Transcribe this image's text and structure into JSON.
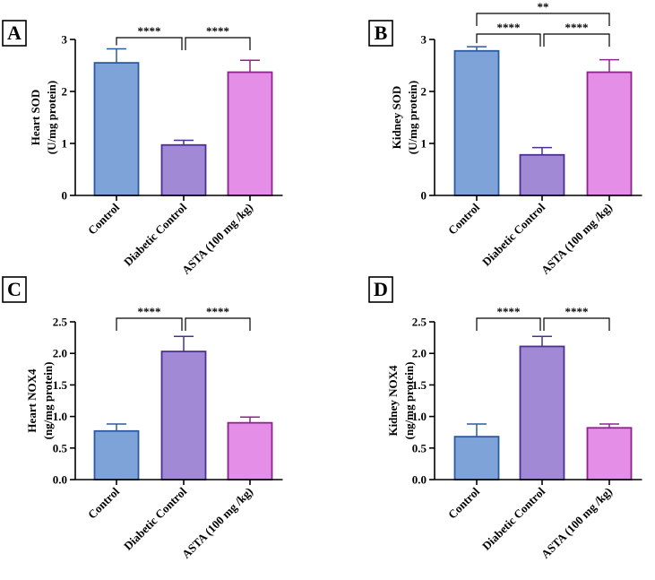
{
  "chart_data": [
    {
      "panel": "A",
      "type": "bar",
      "ylabel_lines": [
        "Heart SOD",
        "(U/mg protein)"
      ],
      "categories": [
        "Control",
        "Diabetic Control",
        "ASTA (100 mg /kg)"
      ],
      "values": [
        2.55,
        0.97,
        2.37
      ],
      "errors": [
        0.27,
        0.09,
        0.23
      ],
      "ylim": [
        0,
        3
      ],
      "yticks": [
        "0",
        "1",
        "2",
        "3"
      ],
      "significance": [
        {
          "from": 0,
          "to": 1,
          "label": "****"
        },
        {
          "from": 1,
          "to": 2,
          "label": "****"
        }
      ]
    },
    {
      "panel": "B",
      "type": "bar",
      "ylabel_lines": [
        "Kidney SOD",
        "(U/mg protein)"
      ],
      "categories": [
        "Control",
        "Diabetic Control",
        "ASTA (100 mg /kg)"
      ],
      "values": [
        2.78,
        0.78,
        2.37
      ],
      "errors": [
        0.08,
        0.14,
        0.24
      ],
      "ylim": [
        0,
        3
      ],
      "yticks": [
        "0",
        "1",
        "2",
        "3"
      ],
      "significance": [
        {
          "from": 0,
          "to": 1,
          "label": "****"
        },
        {
          "from": 1,
          "to": 2,
          "label": "****"
        },
        {
          "from": 0,
          "to": 2,
          "label": "**"
        }
      ]
    },
    {
      "panel": "C",
      "type": "bar",
      "ylabel_lines": [
        "Heart NOX4",
        "(ng/mg protein)"
      ],
      "categories": [
        "Control",
        "Diabetic Control",
        "ASTA (100 mg /kg)"
      ],
      "values": [
        0.77,
        2.03,
        0.9
      ],
      "errors": [
        0.11,
        0.24,
        0.09
      ],
      "ylim": [
        0,
        2.5
      ],
      "yticks": [
        "0.0",
        "0.5",
        "1.0",
        "1.5",
        "2.0",
        "2.5"
      ],
      "significance": [
        {
          "from": 0,
          "to": 1,
          "label": "****"
        },
        {
          "from": 1,
          "to": 2,
          "label": "****"
        }
      ]
    },
    {
      "panel": "D",
      "type": "bar",
      "ylabel_lines": [
        "Kidney NOX4",
        "(ng/mg protein)"
      ],
      "categories": [
        "Control",
        "Diabetic Control",
        "ASTA (100 mg /kg)"
      ],
      "values": [
        0.68,
        2.11,
        0.82
      ],
      "errors": [
        0.2,
        0.16,
        0.06
      ],
      "ylim": [
        0,
        2.5
      ],
      "yticks": [
        "0.0",
        "0.5",
        "1.0",
        "1.5",
        "2.0",
        "2.5"
      ],
      "significance": [
        {
          "from": 0,
          "to": 1,
          "label": "****"
        },
        {
          "from": 1,
          "to": 2,
          "label": "****"
        }
      ]
    }
  ],
  "colors": {
    "control_fill": "#7ea3d8",
    "control_stroke": "#2c5aa0",
    "diabetic_fill": "#a189d6",
    "diabetic_stroke": "#4b2f92",
    "asta_fill": "#e58ee8",
    "asta_stroke": "#8e238f"
  }
}
